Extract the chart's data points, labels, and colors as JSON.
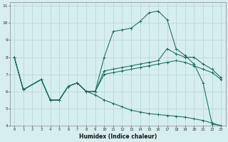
{
  "xlabel": "Humidex (Indice chaleur)",
  "bg_color": "#d7eeee",
  "grid_color": "#b8d8d8",
  "line_color": "#1a6b5e",
  "xlim": [
    -0.5,
    23.5
  ],
  "ylim": [
    4,
    11.2
  ],
  "xticks": [
    0,
    1,
    2,
    3,
    4,
    5,
    6,
    7,
    8,
    9,
    10,
    11,
    12,
    13,
    14,
    15,
    16,
    17,
    18,
    19,
    20,
    21,
    22,
    23
  ],
  "yticks": [
    4,
    5,
    6,
    7,
    8,
    9,
    10,
    11
  ],
  "series": [
    {
      "x": [
        0,
        1,
        3,
        4,
        5,
        6,
        7,
        8,
        9,
        10,
        11,
        12,
        13,
        14,
        15,
        16,
        17,
        18,
        19,
        20,
        21,
        22,
        23
      ],
      "y": [
        8.0,
        6.1,
        6.7,
        5.5,
        5.5,
        6.3,
        6.5,
        6.0,
        6.0,
        8.0,
        9.5,
        9.6,
        9.7,
        10.1,
        10.6,
        10.7,
        10.2,
        8.5,
        8.1,
        7.6,
        6.5,
        4.1,
        4.0
      ]
    },
    {
      "x": [
        0,
        1,
        3,
        4,
        5,
        6,
        7,
        8,
        9,
        10,
        11,
        12,
        13,
        14,
        15,
        16,
        17,
        18,
        19,
        20,
        21,
        22,
        23
      ],
      "y": [
        8.0,
        6.1,
        6.7,
        5.5,
        5.5,
        6.3,
        6.5,
        6.0,
        6.0,
        7.2,
        7.3,
        7.4,
        7.5,
        7.6,
        7.7,
        7.8,
        8.5,
        8.2,
        8.0,
        8.0,
        7.6,
        7.3,
        6.8
      ]
    },
    {
      "x": [
        0,
        1,
        3,
        4,
        5,
        6,
        7,
        8,
        9,
        10,
        11,
        12,
        13,
        14,
        15,
        16,
        17,
        18,
        19,
        20,
        21,
        22,
        23
      ],
      "y": [
        8.0,
        6.1,
        6.7,
        5.5,
        5.5,
        6.3,
        6.5,
        6.0,
        6.0,
        7.0,
        7.1,
        7.2,
        7.3,
        7.4,
        7.5,
        7.6,
        7.7,
        7.8,
        7.7,
        7.5,
        7.3,
        7.1,
        6.7
      ]
    },
    {
      "x": [
        0,
        1,
        3,
        4,
        5,
        6,
        7,
        8,
        9,
        10,
        11,
        12,
        13,
        14,
        15,
        16,
        17,
        18,
        19,
        20,
        21,
        22,
        23
      ],
      "y": [
        8.0,
        6.1,
        6.7,
        5.5,
        5.5,
        6.3,
        6.5,
        6.0,
        5.8,
        5.5,
        5.3,
        5.1,
        4.9,
        4.8,
        4.7,
        4.65,
        4.6,
        4.55,
        4.5,
        4.4,
        4.3,
        4.15,
        4.0
      ]
    }
  ]
}
